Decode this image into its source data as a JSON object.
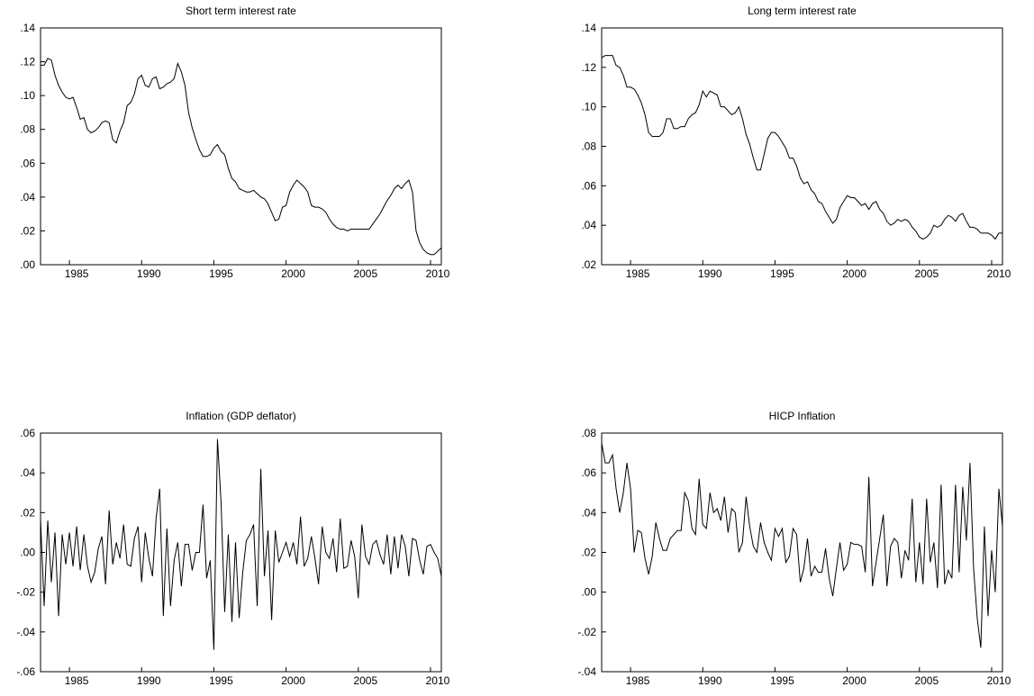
{
  "chart_data": [
    {
      "type": "line",
      "title": "Short term interest rate",
      "color": "#000000",
      "x": [
        1983,
        1983.25,
        1983.5,
        1983.75,
        1984,
        1984.25,
        1984.5,
        1984.75,
        1985,
        1985.25,
        1985.5,
        1985.75,
        1986,
        1986.25,
        1986.5,
        1986.75,
        1987,
        1987.25,
        1987.5,
        1987.75,
        1988,
        1988.25,
        1988.5,
        1988.75,
        1989,
        1989.25,
        1989.5,
        1989.75,
        1990,
        1990.25,
        1990.5,
        1990.75,
        1991,
        1991.25,
        1991.5,
        1991.75,
        1992,
        1992.25,
        1992.5,
        1992.75,
        1993,
        1993.25,
        1993.5,
        1993.75,
        1994,
        1994.25,
        1994.5,
        1994.75,
        1995,
        1995.25,
        1995.5,
        1995.75,
        1996,
        1996.25,
        1996.5,
        1996.75,
        1997,
        1997.25,
        1997.5,
        1997.75,
        1998,
        1998.25,
        1998.5,
        1998.75,
        1999,
        1999.25,
        1999.5,
        1999.75,
        2000,
        2000.25,
        2000.5,
        2000.75,
        2001,
        2001.25,
        2001.5,
        2001.75,
        2002,
        2002.25,
        2002.5,
        2002.75,
        2003,
        2003.25,
        2003.5,
        2003.75,
        2004,
        2004.25,
        2004.5,
        2004.75,
        2005,
        2005.25,
        2005.5,
        2005.75,
        2006,
        2006.25,
        2006.5,
        2006.75,
        2007,
        2007.25,
        2007.5,
        2007.75,
        2008,
        2008.25,
        2008.5,
        2008.75,
        2009,
        2009.25,
        2009.5,
        2009.75,
        2010,
        2010.25,
        2010.5,
        2010.75
      ],
      "values": [
        0.118,
        0.118,
        0.122,
        0.121,
        0.112,
        0.106,
        0.102,
        0.099,
        0.098,
        0.099,
        0.093,
        0.086,
        0.087,
        0.08,
        0.078,
        0.079,
        0.081,
        0.084,
        0.085,
        0.084,
        0.074,
        0.072,
        0.079,
        0.084,
        0.094,
        0.096,
        0.101,
        0.11,
        0.112,
        0.106,
        0.105,
        0.11,
        0.111,
        0.104,
        0.105,
        0.107,
        0.108,
        0.11,
        0.119,
        0.114,
        0.106,
        0.09,
        0.081,
        0.074,
        0.068,
        0.064,
        0.064,
        0.065,
        0.069,
        0.071,
        0.067,
        0.065,
        0.057,
        0.051,
        0.049,
        0.045,
        0.044,
        0.043,
        0.043,
        0.044,
        0.042,
        0.04,
        0.039,
        0.036,
        0.031,
        0.026,
        0.027,
        0.034,
        0.035,
        0.043,
        0.047,
        0.05,
        0.048,
        0.046,
        0.043,
        0.035,
        0.034,
        0.034,
        0.033,
        0.031,
        0.027,
        0.024,
        0.022,
        0.021,
        0.021,
        0.02,
        0.021,
        0.021,
        0.021,
        0.021,
        0.021,
        0.021,
        0.024,
        0.027,
        0.03,
        0.034,
        0.038,
        0.041,
        0.045,
        0.047,
        0.045,
        0.048,
        0.05,
        0.043,
        0.02,
        0.013,
        0.009,
        0.007,
        0.006,
        0.006,
        0.008,
        0.01
      ],
      "xlim": [
        1983,
        2010.75
      ],
      "xticks": [
        1985,
        1990,
        1995,
        2000,
        2005,
        2010
      ],
      "ylim": [
        0,
        0.14
      ],
      "yticks": [
        {
          "value": 0,
          "label": ".00"
        },
        {
          "value": 0.02,
          "label": ".02"
        },
        {
          "value": 0.04,
          "label": ".04"
        },
        {
          "value": 0.06,
          "label": ".06"
        },
        {
          "value": 0.08,
          "label": ".08"
        },
        {
          "value": 0.1,
          "label": ".10"
        },
        {
          "value": 0.12,
          "label": ".12"
        },
        {
          "value": 0.14,
          "label": ".14"
        }
      ]
    },
    {
      "type": "line",
      "title": "Long term interest rate",
      "color": "#000000",
      "x": [
        1983,
        1983.25,
        1983.5,
        1983.75,
        1984,
        1984.25,
        1984.5,
        1984.75,
        1985,
        1985.25,
        1985.5,
        1985.75,
        1986,
        1986.25,
        1986.5,
        1986.75,
        1987,
        1987.25,
        1987.5,
        1987.75,
        1988,
        1988.25,
        1988.5,
        1988.75,
        1989,
        1989.25,
        1989.5,
        1989.75,
        1990,
        1990.25,
        1990.5,
        1990.75,
        1991,
        1991.25,
        1991.5,
        1991.75,
        1992,
        1992.25,
        1992.5,
        1992.75,
        1993,
        1993.25,
        1993.5,
        1993.75,
        1994,
        1994.25,
        1994.5,
        1994.75,
        1995,
        1995.25,
        1995.5,
        1995.75,
        1996,
        1996.25,
        1996.5,
        1996.75,
        1997,
        1997.25,
        1997.5,
        1997.75,
        1998,
        1998.25,
        1998.5,
        1998.75,
        1999,
        1999.25,
        1999.5,
        1999.75,
        2000,
        2000.25,
        2000.5,
        2000.75,
        2001,
        2001.25,
        2001.5,
        2001.75,
        2002,
        2002.25,
        2002.5,
        2002.75,
        2003,
        2003.25,
        2003.5,
        2003.75,
        2004,
        2004.25,
        2004.5,
        2004.75,
        2005,
        2005.25,
        2005.5,
        2005.75,
        2006,
        2006.25,
        2006.5,
        2006.75,
        2007,
        2007.25,
        2007.5,
        2007.75,
        2008,
        2008.25,
        2008.5,
        2008.75,
        2009,
        2009.25,
        2009.5,
        2009.75,
        2010,
        2010.25,
        2010.5,
        2010.75
      ],
      "values": [
        0.125,
        0.126,
        0.126,
        0.126,
        0.121,
        0.12,
        0.116,
        0.11,
        0.11,
        0.109,
        0.106,
        0.102,
        0.096,
        0.087,
        0.085,
        0.085,
        0.085,
        0.087,
        0.094,
        0.094,
        0.089,
        0.089,
        0.09,
        0.09,
        0.094,
        0.096,
        0.097,
        0.101,
        0.108,
        0.105,
        0.108,
        0.107,
        0.106,
        0.1,
        0.1,
        0.098,
        0.096,
        0.097,
        0.1,
        0.094,
        0.086,
        0.081,
        0.074,
        0.068,
        0.068,
        0.076,
        0.084,
        0.087,
        0.087,
        0.085,
        0.082,
        0.079,
        0.074,
        0.074,
        0.07,
        0.064,
        0.061,
        0.062,
        0.058,
        0.056,
        0.052,
        0.051,
        0.047,
        0.044,
        0.041,
        0.043,
        0.049,
        0.052,
        0.055,
        0.054,
        0.054,
        0.052,
        0.05,
        0.051,
        0.048,
        0.051,
        0.052,
        0.048,
        0.046,
        0.042,
        0.04,
        0.041,
        0.043,
        0.042,
        0.043,
        0.042,
        0.039,
        0.037,
        0.034,
        0.033,
        0.034,
        0.036,
        0.04,
        0.039,
        0.04,
        0.043,
        0.045,
        0.044,
        0.042,
        0.045,
        0.046,
        0.042,
        0.039,
        0.039,
        0.038,
        0.036,
        0.036,
        0.036,
        0.035,
        0.033,
        0.036,
        0.036
      ],
      "xlim": [
        1983,
        2010.75
      ],
      "xticks": [
        1985,
        1990,
        1995,
        2000,
        2005,
        2010
      ],
      "ylim": [
        0.02,
        0.14
      ],
      "yticks": [
        {
          "value": 0.02,
          "label": ".02"
        },
        {
          "value": 0.04,
          "label": ".04"
        },
        {
          "value": 0.06,
          "label": ".06"
        },
        {
          "value": 0.08,
          "label": ".08"
        },
        {
          "value": 0.1,
          "label": ".10"
        },
        {
          "value": 0.12,
          "label": ".12"
        },
        {
          "value": 0.14,
          "label": ".14"
        }
      ]
    },
    {
      "type": "line",
      "title": "Inflation (GDP deflator)",
      "color": "#000000",
      "x": [
        1983,
        1983.25,
        1983.5,
        1983.75,
        1984,
        1984.25,
        1984.5,
        1984.75,
        1985,
        1985.25,
        1985.5,
        1985.75,
        1986,
        1986.25,
        1986.5,
        1986.75,
        1987,
        1987.25,
        1987.5,
        1987.75,
        1988,
        1988.25,
        1988.5,
        1988.75,
        1989,
        1989.25,
        1989.5,
        1989.75,
        1990,
        1990.25,
        1990.5,
        1990.75,
        1991,
        1991.25,
        1991.5,
        1991.75,
        1992,
        1992.25,
        1992.5,
        1992.75,
        1993,
        1993.25,
        1993.5,
        1993.75,
        1994,
        1994.25,
        1994.5,
        1994.75,
        1995,
        1995.25,
        1995.5,
        1995.75,
        1996,
        1996.25,
        1996.5,
        1996.75,
        1997,
        1997.25,
        1997.5,
        1997.75,
        1998,
        1998.25,
        1998.5,
        1998.75,
        1999,
        1999.25,
        1999.5,
        1999.75,
        2000,
        2000.25,
        2000.5,
        2000.75,
        2001,
        2001.25,
        2001.5,
        2001.75,
        2002,
        2002.25,
        2002.5,
        2002.75,
        2003,
        2003.25,
        2003.5,
        2003.75,
        2004,
        2004.25,
        2004.5,
        2004.75,
        2005,
        2005.25,
        2005.5,
        2005.75,
        2006,
        2006.25,
        2006.5,
        2006.75,
        2007,
        2007.25,
        2007.5,
        2007.75,
        2008,
        2008.25,
        2008.5,
        2008.75,
        2009,
        2009.25,
        2009.5,
        2009.75,
        2010,
        2010.25,
        2010.5,
        2010.75
      ],
      "values": [
        0.017,
        -0.027,
        0.016,
        -0.015,
        0.01,
        -0.032,
        0.009,
        -0.006,
        0.01,
        -0.007,
        0.013,
        -0.009,
        0.009,
        -0.007,
        -0.015,
        -0.01,
        0.002,
        0.008,
        -0.016,
        0.021,
        -0.006,
        0.005,
        -0.003,
        0.014,
        -0.006,
        -0.007,
        0.007,
        0.013,
        -0.015,
        0.01,
        -0.003,
        -0.012,
        0.017,
        0.032,
        -0.032,
        0.012,
        -0.027,
        -0.004,
        0.005,
        -0.017,
        0.004,
        0.004,
        -0.009,
        0.0,
        0.0,
        0.024,
        -0.013,
        -0.004,
        -0.049,
        0.057,
        0.025,
        -0.03,
        0.009,
        -0.035,
        0.005,
        -0.033,
        -0.01,
        0.006,
        0.009,
        0.014,
        -0.027,
        0.042,
        -0.012,
        0.011,
        -0.034,
        0.011,
        -0.005,
        0.0,
        0.005,
        -0.002,
        0.005,
        -0.006,
        0.018,
        -0.007,
        -0.003,
        0.008,
        -0.003,
        -0.016,
        0.013,
        0.0,
        -0.003,
        0.007,
        -0.01,
        0.017,
        -0.008,
        -0.007,
        0.006,
        -0.002,
        -0.023,
        0.014,
        -0.002,
        -0.006,
        0.004,
        0.006,
        -0.001,
        -0.006,
        0.009,
        -0.011,
        0.008,
        -0.008,
        0.009,
        0.003,
        -0.012,
        0.007,
        0.006,
        -0.004,
        -0.011,
        0.003,
        0.004,
        0.0,
        -0.003,
        -0.012
      ],
      "xlim": [
        1983,
        2010.75
      ],
      "xticks": [
        1985,
        1990,
        1995,
        2000,
        2005,
        2010
      ],
      "ylim": [
        -0.06,
        0.06
      ],
      "yticks": [
        {
          "value": -0.06,
          "label": "-.06"
        },
        {
          "value": -0.04,
          "label": "-.04"
        },
        {
          "value": -0.02,
          "label": "-.02"
        },
        {
          "value": 0,
          "label": ".00"
        },
        {
          "value": 0.02,
          "label": ".02"
        },
        {
          "value": 0.04,
          "label": ".04"
        },
        {
          "value": 0.06,
          "label": ".06"
        }
      ]
    },
    {
      "type": "line",
      "title": "HICP Inflation",
      "color": "#000000",
      "x": [
        1983,
        1983.25,
        1983.5,
        1983.75,
        1984,
        1984.25,
        1984.5,
        1984.75,
        1985,
        1985.25,
        1985.5,
        1985.75,
        1986,
        1986.25,
        1986.5,
        1986.75,
        1987,
        1987.25,
        1987.5,
        1987.75,
        1988,
        1988.25,
        1988.5,
        1988.75,
        1989,
        1989.25,
        1989.5,
        1989.75,
        1990,
        1990.25,
        1990.5,
        1990.75,
        1991,
        1991.25,
        1991.5,
        1991.75,
        1992,
        1992.25,
        1992.5,
        1992.75,
        1993,
        1993.25,
        1993.5,
        1993.75,
        1994,
        1994.25,
        1994.5,
        1994.75,
        1995,
        1995.25,
        1995.5,
        1995.75,
        1996,
        1996.25,
        1996.5,
        1996.75,
        1997,
        1997.25,
        1997.5,
        1997.75,
        1998,
        1998.25,
        1998.5,
        1998.75,
        1999,
        1999.25,
        1999.5,
        1999.75,
        2000,
        2000.25,
        2000.5,
        2000.75,
        2001,
        2001.25,
        2001.5,
        2001.75,
        2002,
        2002.25,
        2002.5,
        2002.75,
        2003,
        2003.25,
        2003.5,
        2003.75,
        2004,
        2004.25,
        2004.5,
        2004.75,
        2005,
        2005.25,
        2005.5,
        2005.75,
        2006,
        2006.25,
        2006.5,
        2006.75,
        2007,
        2007.25,
        2007.5,
        2007.75,
        2008,
        2008.25,
        2008.5,
        2008.75,
        2009,
        2009.25,
        2009.5,
        2009.75,
        2010,
        2010.25,
        2010.5,
        2010.75
      ],
      "values": [
        0.075,
        0.065,
        0.065,
        0.069,
        0.052,
        0.04,
        0.05,
        0.065,
        0.052,
        0.02,
        0.031,
        0.03,
        0.017,
        0.009,
        0.018,
        0.035,
        0.027,
        0.021,
        0.021,
        0.027,
        0.029,
        0.031,
        0.031,
        0.05,
        0.046,
        0.032,
        0.029,
        0.057,
        0.034,
        0.032,
        0.05,
        0.04,
        0.042,
        0.036,
        0.048,
        0.03,
        0.042,
        0.04,
        0.02,
        0.025,
        0.048,
        0.033,
        0.023,
        0.02,
        0.035,
        0.025,
        0.02,
        0.016,
        0.032,
        0.028,
        0.032,
        0.015,
        0.018,
        0.032,
        0.029,
        0.005,
        0.012,
        0.027,
        0.008,
        0.013,
        0.01,
        0.01,
        0.022,
        0.007,
        -0.002,
        0.012,
        0.025,
        0.011,
        0.014,
        0.025,
        0.024,
        0.024,
        0.023,
        0.01,
        0.058,
        0.003,
        0.015,
        0.027,
        0.039,
        0.003,
        0.023,
        0.027,
        0.025,
        0.007,
        0.021,
        0.016,
        0.047,
        0.005,
        0.025,
        0.004,
        0.047,
        0.015,
        0.025,
        0.002,
        0.054,
        0.004,
        0.011,
        0.007,
        0.054,
        0.01,
        0.053,
        0.026,
        0.065,
        0.012,
        -0.013,
        -0.028,
        0.033,
        -0.012,
        0.021,
        0.0,
        0.052,
        0.033
      ],
      "xlim": [
        1983,
        2010.75
      ],
      "xticks": [
        1985,
        1990,
        1995,
        2000,
        2005,
        2010
      ],
      "ylim": [
        -0.04,
        0.08
      ],
      "yticks": [
        {
          "value": -0.04,
          "label": "-.04"
        },
        {
          "value": -0.02,
          "label": "-.02"
        },
        {
          "value": 0,
          "label": ".00"
        },
        {
          "value": 0.02,
          "label": ".02"
        },
        {
          "value": 0.04,
          "label": ".04"
        },
        {
          "value": 0.06,
          "label": ".06"
        },
        {
          "value": 0.08,
          "label": ".08"
        }
      ]
    }
  ]
}
